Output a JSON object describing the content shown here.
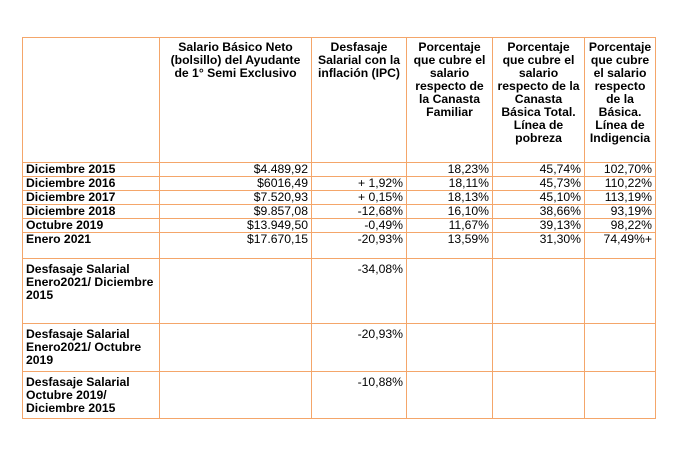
{
  "headers": [
    "",
    "Salario Básico Neto (bolsillo) del Ayudante de 1° Semi Exclusivo",
    "Desfasaje Salarial con la inflación (IPC)",
    "Porcentaje que cubre el salario respecto de la Canasta Familiar",
    "Porcentaje que cubre el salario respecto de la Canasta Básica Total. Línea de pobreza",
    "Porcentaje que cubre el salario respecto de la Básica. Línea de Indigencia"
  ],
  "rows": [
    {
      "label": "Diciembre 2015",
      "salario": "$4.489,92",
      "desfasaje": "",
      "canasta_familiar": "18,23%",
      "pobreza": "45,74%",
      "indigencia": "102,70%"
    },
    {
      "label": "Diciembre 2016",
      "salario": "$6016,49",
      "desfasaje": "+ 1,92%",
      "canasta_familiar": "18,11%",
      "pobreza": "45,73%",
      "indigencia": "110,22%"
    },
    {
      "label": "Diciembre 2017",
      "salario": "$7.520,93",
      "desfasaje": "+ 0,15%",
      "canasta_familiar": "18,13%",
      "pobreza": "45,10%",
      "indigencia": "113,19%"
    },
    {
      "label": "Diciembre 2018",
      "salario": "$9.857,08",
      "desfasaje": "-12,68%",
      "canasta_familiar": "16,10%",
      "pobreza": "38,66%",
      "indigencia": "93,19%"
    },
    {
      "label": "Octubre 2019",
      "salario": "$13.949,50",
      "desfasaje": "-0,49%",
      "canasta_familiar": "11,67%",
      "pobreza": "39,13%",
      "indigencia": "98,22%"
    },
    {
      "label": "Enero 2021",
      "salario": "$17.670,15",
      "desfasaje": "-20,93%",
      "canasta_familiar": "13,59%",
      "pobreza": "31,30%",
      "indigencia": "74,49%+"
    }
  ],
  "summary_rows": [
    {
      "label": "Desfasaje Salarial Enero2021/ Diciembre 2015",
      "desfasaje": "-34,08%"
    },
    {
      "label": "Desfasaje Salarial Enero2021/ Octubre 2019",
      "desfasaje": "-20,93%"
    },
    {
      "label": "Desfasaje Salarial Octubre 2019/ Diciembre 2015",
      "desfasaje": "-10,88%"
    }
  ]
}
